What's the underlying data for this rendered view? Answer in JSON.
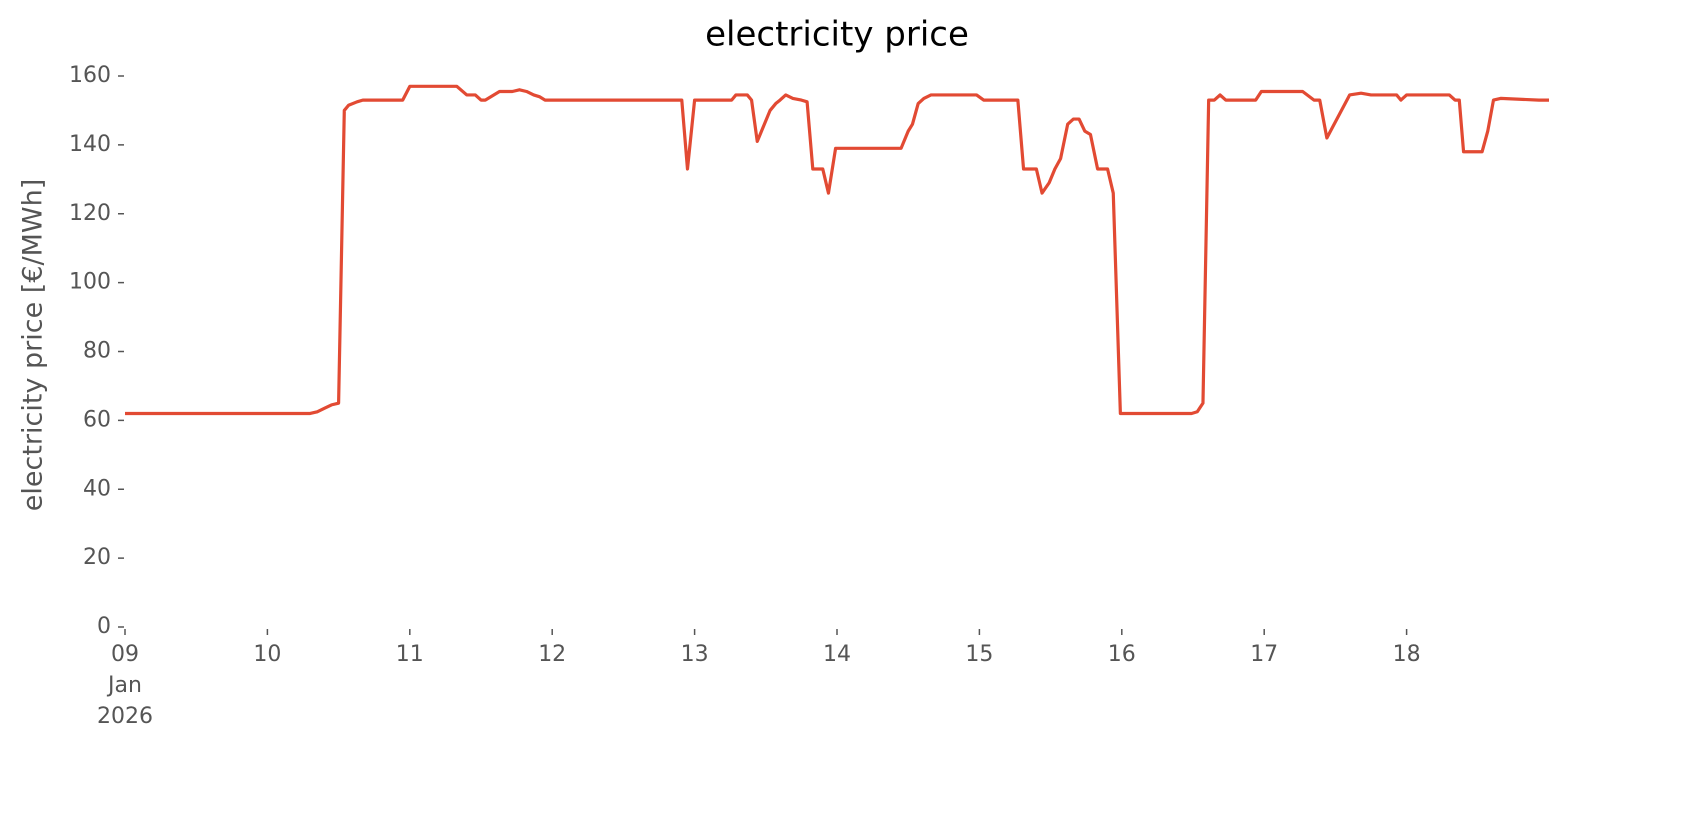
{
  "chart_data": {
    "type": "line",
    "title": "electricity price",
    "ylabel": "electricity price [€/MWh]",
    "color": "#e24a33",
    "x": [
      9.0,
      10.3,
      10.35,
      10.4,
      10.45,
      10.5,
      10.54,
      10.57,
      10.63,
      10.67,
      10.95,
      11.0,
      11.33,
      11.4,
      11.46,
      11.5,
      11.53,
      11.63,
      11.72,
      11.77,
      11.82,
      11.87,
      11.91,
      11.95,
      12.91,
      12.95,
      13.0,
      13.26,
      13.29,
      13.37,
      13.4,
      13.44,
      13.48,
      13.53,
      13.57,
      13.6,
      13.64,
      13.69,
      13.75,
      13.79,
      13.83,
      13.9,
      13.94,
      13.99,
      14.45,
      14.5,
      14.53,
      14.57,
      14.61,
      14.66,
      14.98,
      15.03,
      15.27,
      15.31,
      15.4,
      15.44,
      15.49,
      15.53,
      15.57,
      15.62,
      15.66,
      15.7,
      15.74,
      15.78,
      15.83,
      15.9,
      15.94,
      15.99,
      16.49,
      16.53,
      16.57,
      16.61,
      16.65,
      16.69,
      16.73,
      16.94,
      16.98,
      17.27,
      17.35,
      17.39,
      17.44,
      17.6,
      17.68,
      17.75,
      17.93,
      17.96,
      18.0,
      18.3,
      18.34,
      18.37,
      18.4,
      18.53,
      18.57,
      18.61,
      18.66,
      18.93,
      19.0
    ],
    "values": [
      62,
      62,
      62.5,
      63.5,
      64.5,
      65,
      150,
      151.5,
      152.5,
      153,
      153,
      157,
      157,
      154.5,
      154.5,
      153,
      153,
      155.5,
      155.5,
      156,
      155.5,
      154.5,
      154,
      153,
      153,
      133,
      153,
      153,
      154.5,
      154.5,
      153,
      141,
      145,
      150,
      152,
      153,
      154.5,
      153.5,
      153,
      152.5,
      133,
      133,
      126,
      139,
      139,
      144,
      146,
      152,
      153.5,
      154.5,
      154.5,
      153,
      153,
      133,
      133,
      126,
      129,
      133,
      136,
      146,
      147.5,
      147.5,
      144,
      143,
      133,
      133,
      126,
      62,
      62,
      62.5,
      65,
      153,
      153,
      154.5,
      153,
      153,
      155.5,
      155.5,
      153,
      153,
      142,
      154.5,
      155,
      154.5,
      154.5,
      153,
      154.5,
      154.5,
      153,
      153,
      138,
      138,
      144,
      153,
      153.5,
      153,
      153
    ],
    "xlim": [
      9,
      19
    ],
    "xticks": [
      {
        "value": 9,
        "label": "09\nJan\n2026"
      },
      10,
      11,
      12,
      13,
      14,
      15,
      16,
      17,
      18
    ],
    "ylim": [
      0,
      160
    ],
    "yticks": [
      0,
      20,
      40,
      60,
      80,
      100,
      120,
      140,
      160
    ],
    "grid": false
  }
}
